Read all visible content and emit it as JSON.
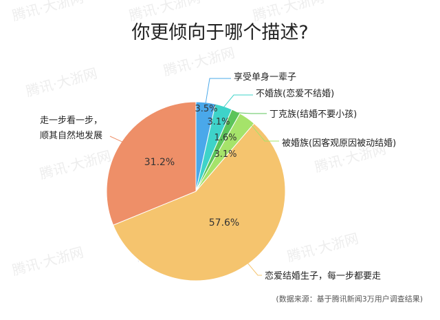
{
  "title": "你更倾向于哪个描述?",
  "source": "(数据来源：基于腾讯新闻3万用户调查结果)",
  "watermark": "腾讯·大浙网",
  "chart_data": {
    "type": "pie",
    "title": "你更倾向于哪个描述?",
    "slices": [
      {
        "label": "享受单身一辈子",
        "value": 3.5,
        "display": "3.5%",
        "color": "#4aa8ea"
      },
      {
        "label": "不婚族(恋爱不结婚)",
        "value": 3.1,
        "display": "3.1%",
        "color": "#3ed3c9"
      },
      {
        "label": "丁克族(结婚不要小孩)",
        "value": 1.6,
        "display": "1.6%",
        "color": "#5cc45a"
      },
      {
        "label": "被婚族(因客观原因被动结婚)",
        "value": 3.1,
        "display": "3.1%",
        "color": "#a5e36a"
      },
      {
        "label": "恋爱结婚生子，每一步都要走",
        "value": 57.6,
        "display": "57.6%",
        "color": "#f5c46e"
      },
      {
        "label_lines": [
          "走一步看一步，",
          "顺其自然地发展"
        ],
        "value": 31.2,
        "display": "31.2%",
        "color": "#ee8f68"
      }
    ]
  }
}
